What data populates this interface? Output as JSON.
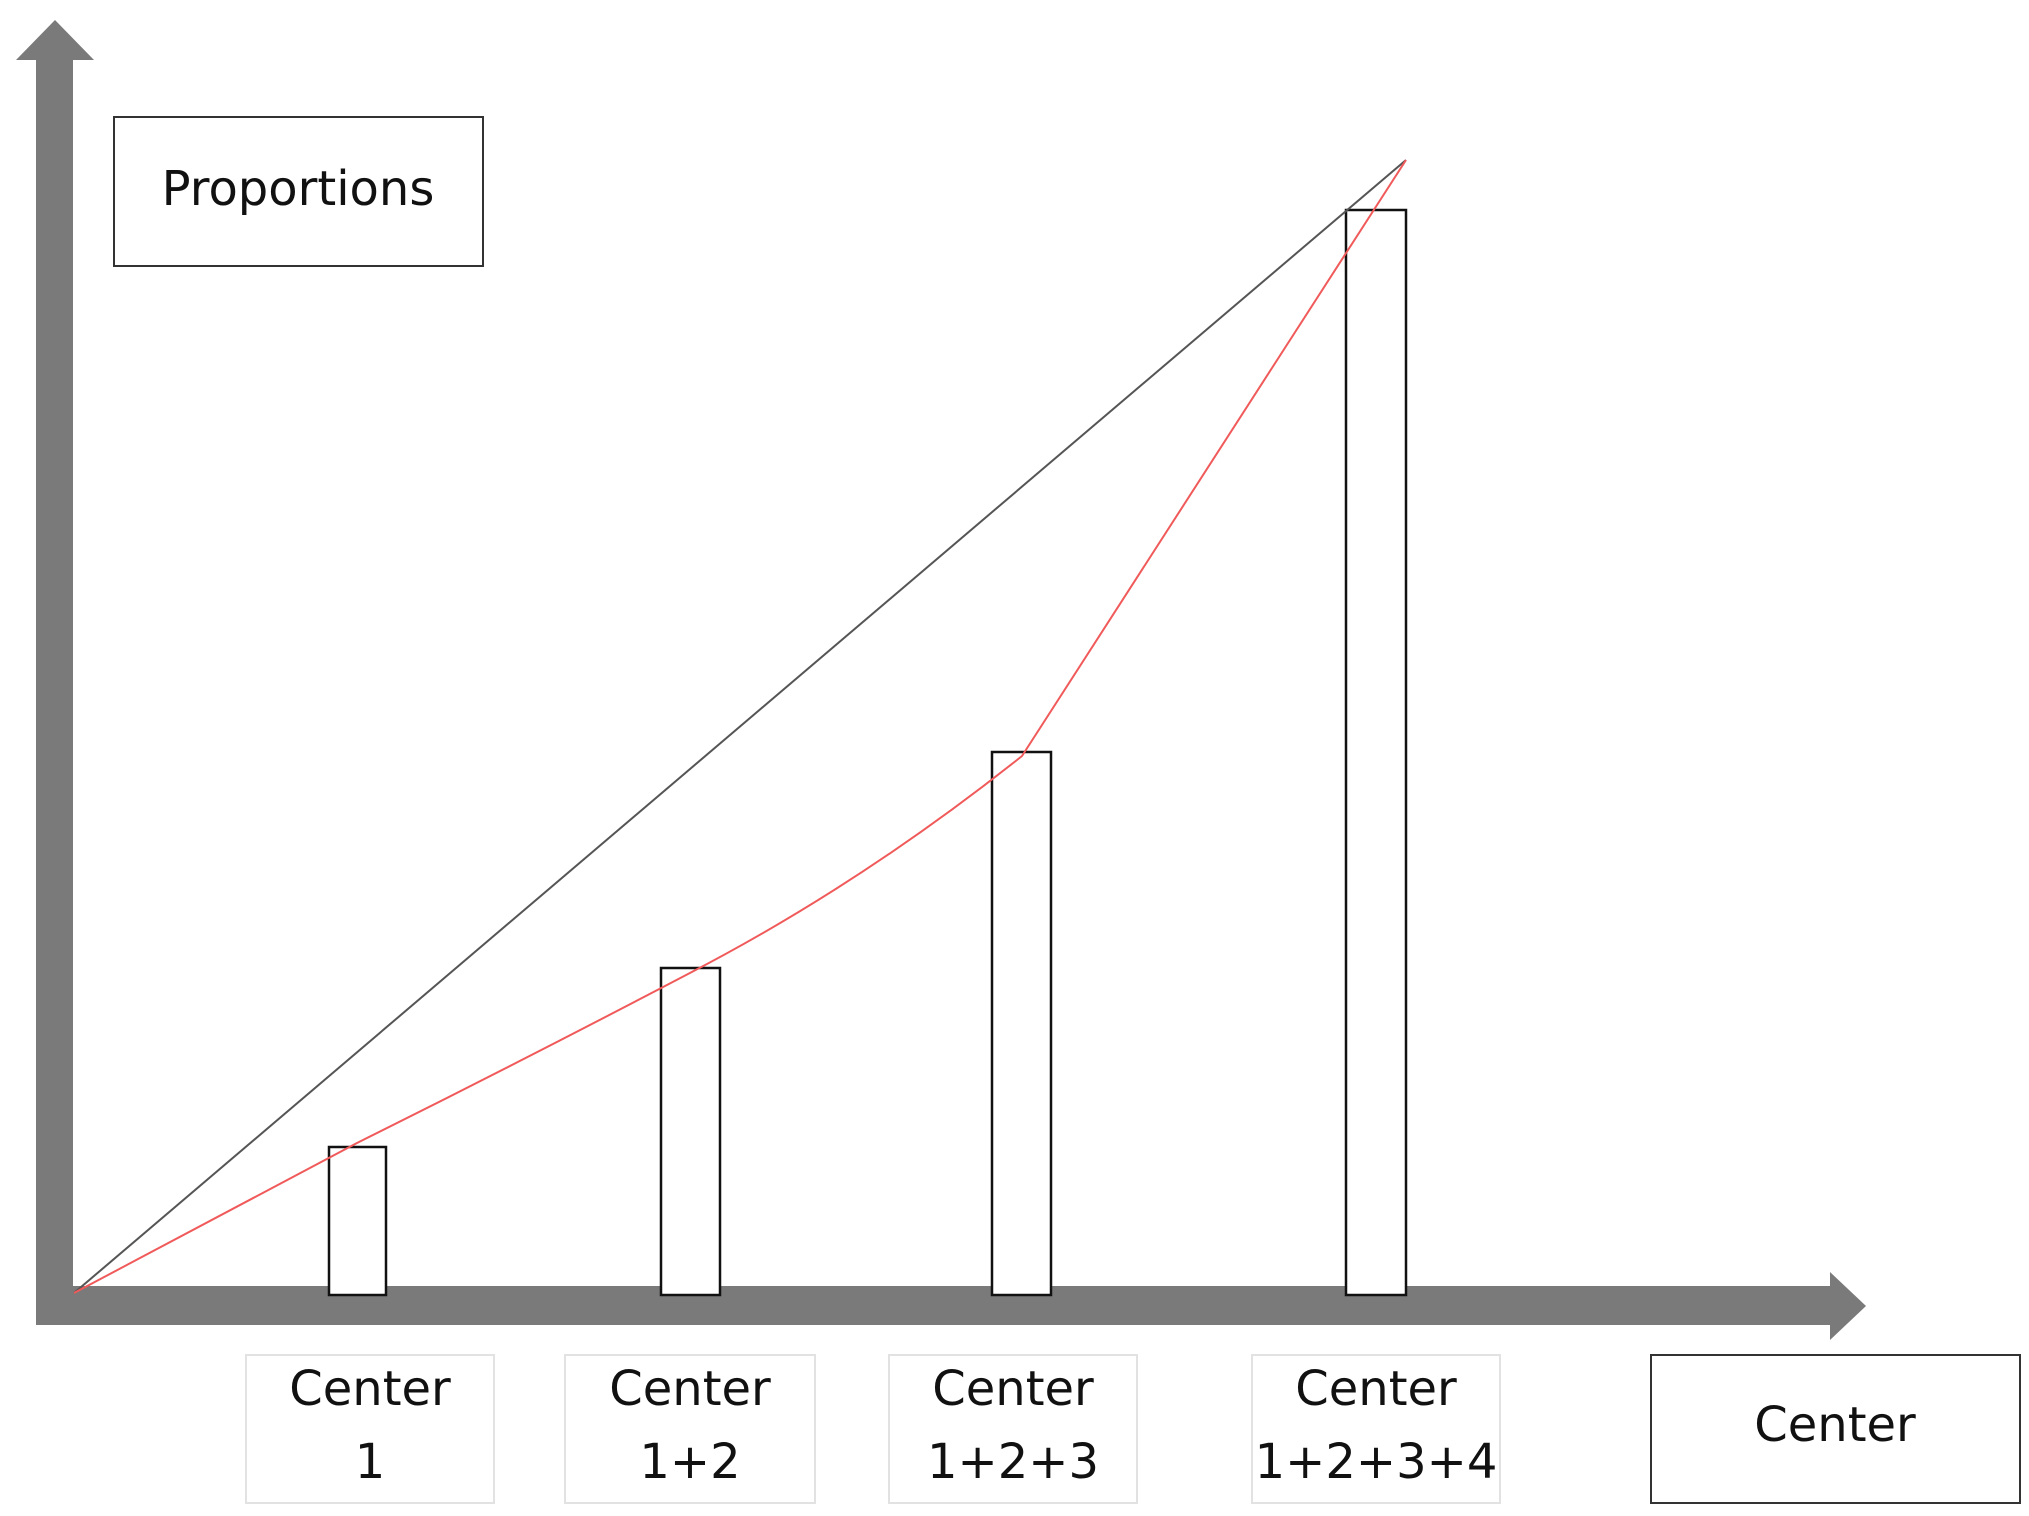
{
  "y_axis_label": "Proportions",
  "x_axis_label": "Center",
  "categories": [
    {
      "lines": [
        "Center",
        "1"
      ]
    },
    {
      "lines": [
        "Center",
        "1+2"
      ]
    },
    {
      "lines": [
        "Center",
        "1+2+3"
      ]
    },
    {
      "lines": [
        "Center",
        "1+2+3+4"
      ]
    }
  ]
}
